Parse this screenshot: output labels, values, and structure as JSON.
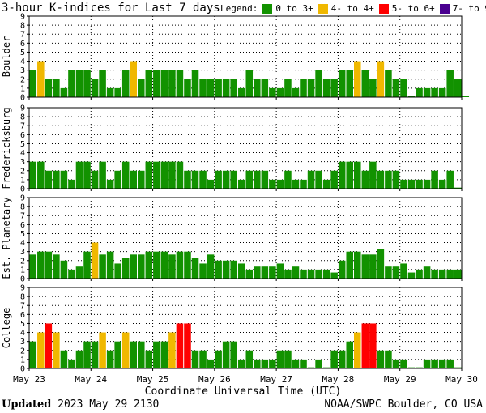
{
  "chart_data": {
    "type": "bar",
    "title": "3-hour K-indices for Last 7 days",
    "legend": {
      "label": "Legend:",
      "entries": [
        {
          "label": "0 to 3+",
          "color": "#129200"
        },
        {
          "label": "4- to 4+",
          "color": "#f0b800"
        },
        {
          "label": "5- to 6+",
          "color": "#ff0000"
        },
        {
          "label": "7- to 9",
          "color": "#4a0090"
        }
      ]
    },
    "ylim": [
      0,
      9
    ],
    "yticks": [
      "0",
      "1",
      "2",
      "3",
      "4",
      "5",
      "6",
      "7",
      "8",
      "9"
    ],
    "xticks": [
      "May 23",
      "May 24",
      "May 25",
      "May 26",
      "May 27",
      "May 28",
      "May 29",
      "May 30"
    ],
    "xlabel": "Coordinate Universal Time (UTC)",
    "panels": [
      {
        "name": "Boulder",
        "values": [
          3,
          4,
          2,
          2,
          1,
          3,
          3,
          3,
          2,
          3,
          1,
          1,
          3,
          4,
          2,
          3,
          3,
          3,
          3,
          3,
          2,
          3,
          2,
          2,
          2,
          2,
          2,
          1,
          3,
          2,
          2,
          1,
          1,
          2,
          1,
          2,
          2,
          3,
          2,
          2,
          3,
          3,
          4,
          3,
          2,
          4,
          3,
          2,
          2,
          0,
          1,
          1,
          1,
          1,
          3,
          2,
          0
        ]
      },
      {
        "name": "Fredericksburg",
        "values": [
          3,
          3,
          2,
          2,
          2,
          1,
          3,
          3,
          2,
          3,
          1,
          2,
          3,
          2,
          2,
          3,
          3,
          3,
          3,
          3,
          2,
          2,
          2,
          1,
          2,
          2,
          2,
          1,
          2,
          2,
          2,
          1,
          1,
          2,
          1,
          1,
          2,
          2,
          1,
          2,
          3,
          3,
          3,
          2,
          3,
          2,
          2,
          2,
          1,
          1,
          1,
          1,
          2,
          1,
          2,
          0
        ]
      },
      {
        "name": "Est. Planetary",
        "values": [
          2.67,
          3,
          3,
          2.67,
          2,
          1,
          1.33,
          3,
          4,
          2.67,
          3,
          1.67,
          2.33,
          2.67,
          2.67,
          3,
          3,
          3,
          2.67,
          3,
          3,
          2.33,
          1.67,
          2.67,
          2,
          2,
          2,
          1.67,
          1,
          1.33,
          1.33,
          1.33,
          1.67,
          1,
          1.33,
          1,
          1,
          1,
          1,
          0.67,
          2,
          3,
          3,
          2.67,
          2.67,
          3.33,
          1.33,
          1.33,
          1.67,
          0.67,
          1,
          1.33,
          1,
          1,
          1,
          1
        ]
      },
      {
        "name": "College",
        "values": [
          3,
          4,
          5,
          4,
          2,
          1,
          2,
          3,
          3,
          4,
          2,
          3,
          4,
          3,
          3,
          2,
          3,
          3,
          4,
          5,
          5,
          2,
          2,
          1,
          2,
          3,
          3,
          1,
          2,
          1,
          1,
          1,
          2,
          2,
          1,
          1,
          0,
          1,
          0,
          2,
          2,
          3,
          4,
          5,
          5,
          2,
          2,
          1,
          1,
          0,
          0,
          1,
          1,
          1,
          1,
          0
        ]
      }
    ],
    "colors": {
      "quiet": "#129200",
      "active": "#f0b800",
      "storm": "#ff0000",
      "severe": "#4a0090"
    }
  },
  "footer": {
    "updated_label": "Updated",
    "updated_value": "2023 May 29 2130",
    "credit": "NOAA/SWPC Boulder, CO USA"
  }
}
